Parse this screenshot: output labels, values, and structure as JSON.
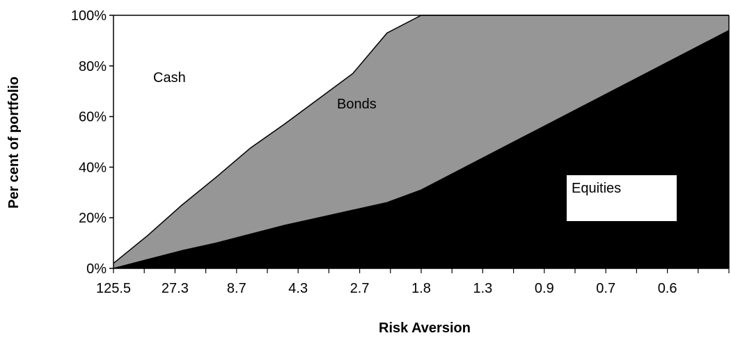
{
  "chart_data": {
    "type": "area",
    "stacked": true,
    "percent": true,
    "xlabel": "Risk Aversion",
    "ylabel": "Per cent of portfolio",
    "ylim": [
      0,
      100
    ],
    "yticks": [
      "0%",
      "20%",
      "40%",
      "60%",
      "80%",
      "100%"
    ],
    "categories_labeled": [
      "125.5",
      "27.3",
      "8.7",
      "4.3",
      "2.7",
      "1.8",
      "1.3",
      "0.9",
      "0.7",
      "0.6"
    ],
    "num_points": 19,
    "grid": false,
    "legend": "none",
    "series": [
      {
        "name": "Equities",
        "color": "#000000",
        "label_box": true,
        "values": [
          0,
          3.5,
          7,
          10,
          13.5,
          17,
          20,
          23,
          26,
          31,
          38,
          45,
          52,
          59,
          66,
          73,
          80,
          87,
          94
        ]
      },
      {
        "name": "Bonds",
        "color": "#969696",
        "values": [
          2,
          9.5,
          18,
          26,
          34,
          40,
          47,
          54,
          67,
          69,
          62,
          55,
          48,
          41,
          34,
          27,
          20,
          13,
          6
        ]
      },
      {
        "name": "Cash",
        "color": "#ffffff",
        "values": [
          98,
          87,
          75,
          64,
          52.5,
          43,
          33,
          23,
          7,
          0,
          0,
          0,
          0,
          0,
          0,
          0,
          0,
          0,
          0
        ]
      }
    ]
  }
}
